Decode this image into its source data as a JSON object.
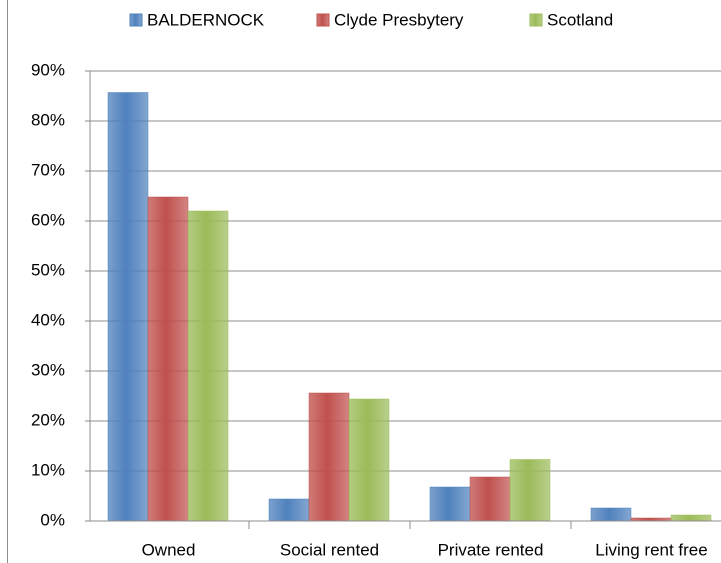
{
  "chart_data": {
    "type": "bar",
    "categories": [
      "Owned",
      "Social rented",
      "Private rented",
      "Living rent free"
    ],
    "series": [
      {
        "name": "BALDERNOCK",
        "color": "#4f81bd",
        "values": [
          85.7,
          4.4,
          6.8,
          2.6
        ]
      },
      {
        "name": "Clyde Presbytery",
        "color": "#c0504d",
        "values": [
          64.8,
          25.6,
          8.8,
          0.6
        ]
      },
      {
        "name": "Scotland",
        "color": "#9bbb59",
        "values": [
          62,
          24.4,
          12.3,
          1.2
        ]
      }
    ],
    "ylim": [
      0,
      90
    ],
    "yticks": [
      {
        "value": 0,
        "label": "0%"
      },
      {
        "value": 10,
        "label": "10%"
      },
      {
        "value": 20,
        "label": "20%"
      },
      {
        "value": 30,
        "label": "30%"
      },
      {
        "value": 40,
        "label": "40%"
      },
      {
        "value": 50,
        "label": "50%"
      },
      {
        "value": 60,
        "label": "60%"
      },
      {
        "value": 70,
        "label": "70%"
      },
      {
        "value": 80,
        "label": "80%"
      },
      {
        "value": 90,
        "label": "90%"
      }
    ],
    "grid": true,
    "legend": "top"
  }
}
